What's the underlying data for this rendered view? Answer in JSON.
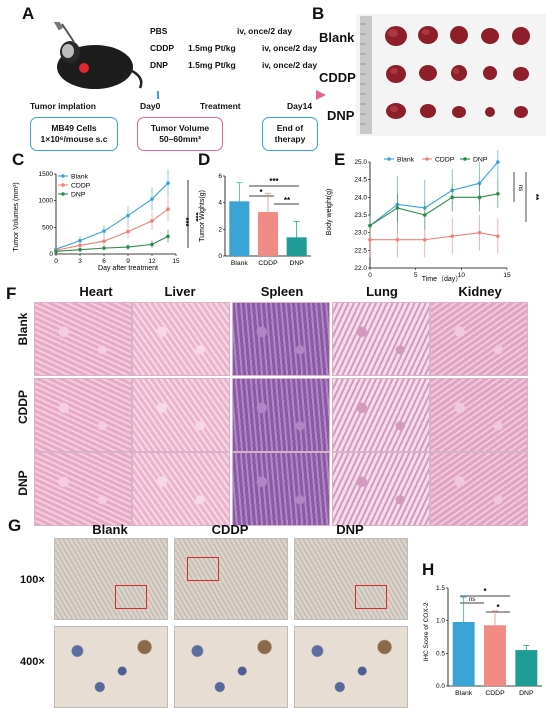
{
  "panel_a": {
    "letter": "A",
    "treatments": [
      {
        "name": "PBS",
        "dose": "",
        "route": "iv, once/2 day"
      },
      {
        "name": "CDDP",
        "dose": "1.5mg Pt/kg",
        "route": "iv, once/2 day"
      },
      {
        "name": "DNP",
        "dose": "1.5mg Pt/kg",
        "route": "iv, once/2 day"
      }
    ],
    "timeline": {
      "implant": "Tumor implation",
      "day0": "Day0",
      "treatment": "Treatment",
      "day14": "Day14"
    },
    "boxes": {
      "cells_l1": "MB49 Cells",
      "cells_l2": "1×10⁶/mouse s.c",
      "vol_l1": "Tumor Volume",
      "vol_l2": "50–60mm³",
      "end_l1": "End of",
      "end_l2": "therapy"
    },
    "colors": {
      "blue": "#3ba3d6",
      "pink": "#e3659a"
    }
  },
  "panel_b": {
    "letter": "B",
    "rows": [
      "Blank",
      "CDDP",
      "DNP"
    ]
  },
  "panel_c": {
    "letter": "C",
    "sig": "***",
    "sig2": "***"
  },
  "panel_d": {
    "letter": "D",
    "sig_top": "***",
    "sig_mid": "*",
    "sig_low": "**"
  },
  "panel_e": {
    "letter": "E",
    "sig_ns": "ns",
    "sig_stars": "**"
  },
  "panel_f": {
    "letter": "F",
    "columns": [
      "Heart",
      "Liver",
      "Spleen",
      "Lung",
      "Kidney"
    ],
    "rows": [
      "Blank",
      "CDDP",
      "DNP"
    ]
  },
  "panel_g": {
    "letter": "G",
    "columns": [
      "Blank",
      "CDDP",
      "DNP"
    ],
    "rows": [
      "100×",
      "400×"
    ]
  },
  "panel_h": {
    "letter": "H",
    "sig_ns": "ns",
    "sig1": "*",
    "sig2": "*"
  },
  "chart_data": [
    {
      "panel": "C",
      "type": "line",
      "xlabel": "Day after treatment",
      "ylabel": "Tumor Volumes (mm³)",
      "xlim": [
        0,
        15
      ],
      "ylim": [
        0,
        1500
      ],
      "xticks": [
        0,
        3,
        6,
        9,
        12,
        15
      ],
      "yticks": [
        0,
        500,
        1000,
        1500
      ],
      "x": [
        0,
        3,
        6,
        9,
        12,
        14
      ],
      "series": [
        {
          "name": "Blank",
          "color": "#3ba3d6",
          "values": [
            90,
            250,
            430,
            720,
            1030,
            1330
          ],
          "err": [
            40,
            80,
            110,
            170,
            220,
            260
          ]
        },
        {
          "name": "CDDP",
          "color": "#f0807a",
          "values": [
            70,
            160,
            240,
            420,
            620,
            840
          ],
          "err": [
            30,
            60,
            90,
            130,
            170,
            220
          ]
        },
        {
          "name": "DNP",
          "color": "#2e8b4a",
          "values": [
            50,
            80,
            110,
            130,
            180,
            330
          ],
          "err": [
            20,
            30,
            40,
            50,
            70,
            120
          ]
        }
      ],
      "legend": "top-left"
    },
    {
      "panel": "D",
      "type": "bar",
      "ylabel": "Tumor Wights(g)",
      "ylim": [
        0,
        6
      ],
      "yticks": [
        0,
        2,
        4,
        6
      ],
      "categories": [
        "Blank",
        "CDDP",
        "DNP"
      ],
      "values": [
        4.1,
        3.3,
        1.4
      ],
      "err": [
        1.4,
        1.4,
        1.2
      ],
      "colors": [
        "#3ba3d6",
        "#f08c84",
        "#1f9c96"
      ]
    },
    {
      "panel": "E",
      "type": "line",
      "xlabel": "Time（day）",
      "ylabel": "Body weight(g)",
      "xlim": [
        0,
        15
      ],
      "ylim": [
        22,
        25
      ],
      "xticks": [
        0,
        5,
        10,
        15
      ],
      "yticks": [
        22.0,
        22.5,
        23.0,
        23.5,
        24.0,
        24.5,
        25.0
      ],
      "x": [
        0,
        3,
        6,
        9,
        12,
        14
      ],
      "series": [
        {
          "name": "Blank",
          "color": "#3ba3d6",
          "values": [
            23.2,
            23.8,
            23.7,
            24.2,
            24.4,
            25.0
          ],
          "err": [
            0.3,
            0.8,
            0.8,
            0.6,
            0.6,
            0.5
          ]
        },
        {
          "name": "CDDP",
          "color": "#f0807a",
          "values": [
            22.8,
            22.8,
            22.8,
            22.9,
            23.0,
            22.9
          ],
          "err": [
            0.5,
            0.5,
            0.5,
            0.5,
            0.5,
            0.5
          ]
        },
        {
          "name": "DNP",
          "color": "#2e8b4a",
          "values": [
            23.2,
            23.7,
            23.5,
            24.0,
            24.0,
            24.1
          ],
          "err": [
            0.3,
            0.4,
            0.4,
            0.4,
            0.4,
            0.4
          ]
        }
      ],
      "legend": "top"
    },
    {
      "panel": "H",
      "type": "bar",
      "ylabel": "IHC Score of COX-2",
      "ylim": [
        0,
        1.5
      ],
      "yticks": [
        0.0,
        0.5,
        1.0,
        1.5
      ],
      "categories": [
        "Blank",
        "CDDP",
        "DNP"
      ],
      "values": [
        0.98,
        0.93,
        0.55
      ],
      "err": [
        0.38,
        0.22,
        0.07
      ],
      "colors": [
        "#3ba3d6",
        "#f08c84",
        "#1f9c96"
      ]
    }
  ]
}
